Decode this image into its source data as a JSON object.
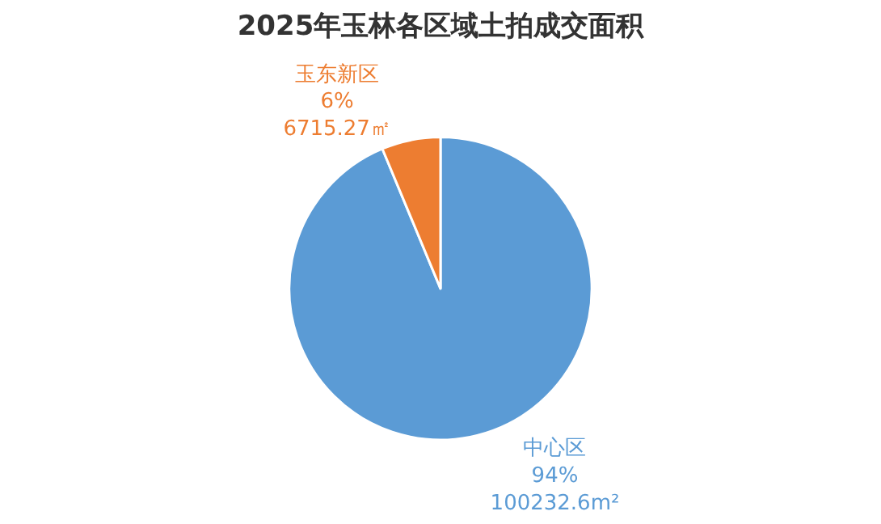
{
  "chart_data": {
    "type": "pie",
    "title": "2025年玉林各区域土拍成交面积",
    "categories": [
      "中心区",
      "玉东新区"
    ],
    "values": [
      100232.6,
      6715.27
    ],
    "colors": [
      "#5b9bd5",
      "#ed7d31"
    ],
    "value_labels": [
      "100232.6m²",
      "6715.27㎡"
    ],
    "annotations": [
      "94%",
      "6%"
    ],
    "legend": false
  }
}
